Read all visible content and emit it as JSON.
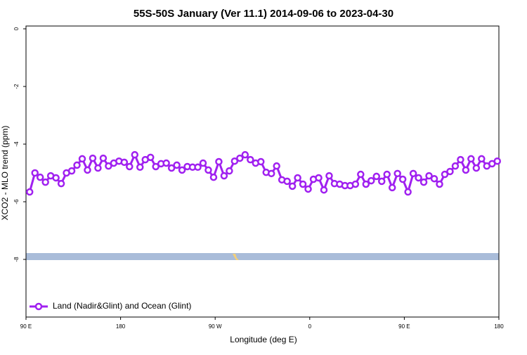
{
  "chart_data": {
    "type": "line",
    "title": "55S-50S January (Ver 11.1)   2014-09-06 to 2023-04-30",
    "x_label": "Longitude (deg E)",
    "y_label": "XCO2 - MLO trend (ppm)",
    "x": [
      93.5,
      98.5,
      103.5,
      108.5,
      113.5,
      118.5,
      123.5,
      128.5,
      133.5,
      138.5,
      143.5,
      148.5,
      153.5,
      158.5,
      163.5,
      168.5,
      173.5,
      178.5,
      183.5,
      188.5,
      193.5,
      198.5,
      203.5,
      208.5,
      213.5,
      218.5,
      223.5,
      228.5,
      233.5,
      238.5,
      243.5,
      248.5,
      253.5,
      258.5,
      263.5,
      268.5,
      273.5,
      278.5,
      283.5,
      288.5,
      293.5,
      298.5,
      303.5,
      308.5,
      313.5,
      318.5,
      323.5,
      328.5,
      333.5,
      338.5,
      343.5,
      348.5,
      353.5,
      358.5,
      363.5,
      368.5,
      373.5,
      378.5,
      383.5,
      388.5,
      393.5,
      398.5,
      403.5,
      408.5,
      413.5,
      418.5,
      423.5,
      428.5,
      433.5,
      438.5,
      443.5,
      448.5,
      453.5,
      458.5,
      463.5,
      468.5,
      473.5,
      478.5,
      483.5,
      488.5,
      493.5,
      498.5,
      503.5,
      508.5,
      513.5,
      518.5,
      523.5,
      528.5,
      533.5,
      538.5
    ],
    "series": [
      {
        "name": "Land (Nadir&Glint) and Ocean (Glint)",
        "color": "#a020f0",
        "values": [
          -5.66,
          -5.0,
          -5.15,
          -5.32,
          -5.1,
          -5.17,
          -5.37,
          -5.0,
          -4.93,
          -4.73,
          -4.51,
          -4.9,
          -4.49,
          -4.83,
          -4.49,
          -4.76,
          -4.66,
          -4.59,
          -4.63,
          -4.78,
          -4.37,
          -4.8,
          -4.54,
          -4.46,
          -4.78,
          -4.68,
          -4.66,
          -4.83,
          -4.73,
          -4.9,
          -4.78,
          -4.8,
          -4.8,
          -4.66,
          -4.9,
          -5.15,
          -4.61,
          -5.1,
          -4.93,
          -4.59,
          -4.49,
          -4.37,
          -4.54,
          -4.66,
          -4.61,
          -4.98,
          -5.02,
          -4.76,
          -5.24,
          -5.29,
          -5.46,
          -5.17,
          -5.39,
          -5.56,
          -5.22,
          -5.17,
          -5.59,
          -5.1,
          -5.37,
          -5.39,
          -5.44,
          -5.44,
          -5.39,
          -5.05,
          -5.39,
          -5.27,
          -5.12,
          -5.29,
          -5.05,
          -5.51,
          -5.02,
          -5.22,
          -5.66,
          -5.02,
          -5.17,
          -5.32,
          -5.1,
          -5.2,
          -5.39,
          -5.05,
          -4.95,
          -4.76,
          -4.54,
          -4.9,
          -4.51,
          -4.83,
          -4.51,
          -4.76,
          -4.68,
          -4.59
        ]
      }
    ],
    "xlim": [
      90,
      540
    ],
    "xticks": [
      {
        "value": 90,
        "label": "90 E"
      },
      180,
      {
        "value": 270,
        "label": "90 W"
      },
      {
        "value": 360,
        "label": "0"
      },
      {
        "value": 450,
        "label": "90 E"
      },
      {
        "value": 540,
        "label": "180"
      }
    ],
    "ylim": [
      -10,
      0
    ],
    "yticks": [
      0,
      -2,
      -4,
      -6,
      -8
    ],
    "legend": "bottom-left"
  }
}
